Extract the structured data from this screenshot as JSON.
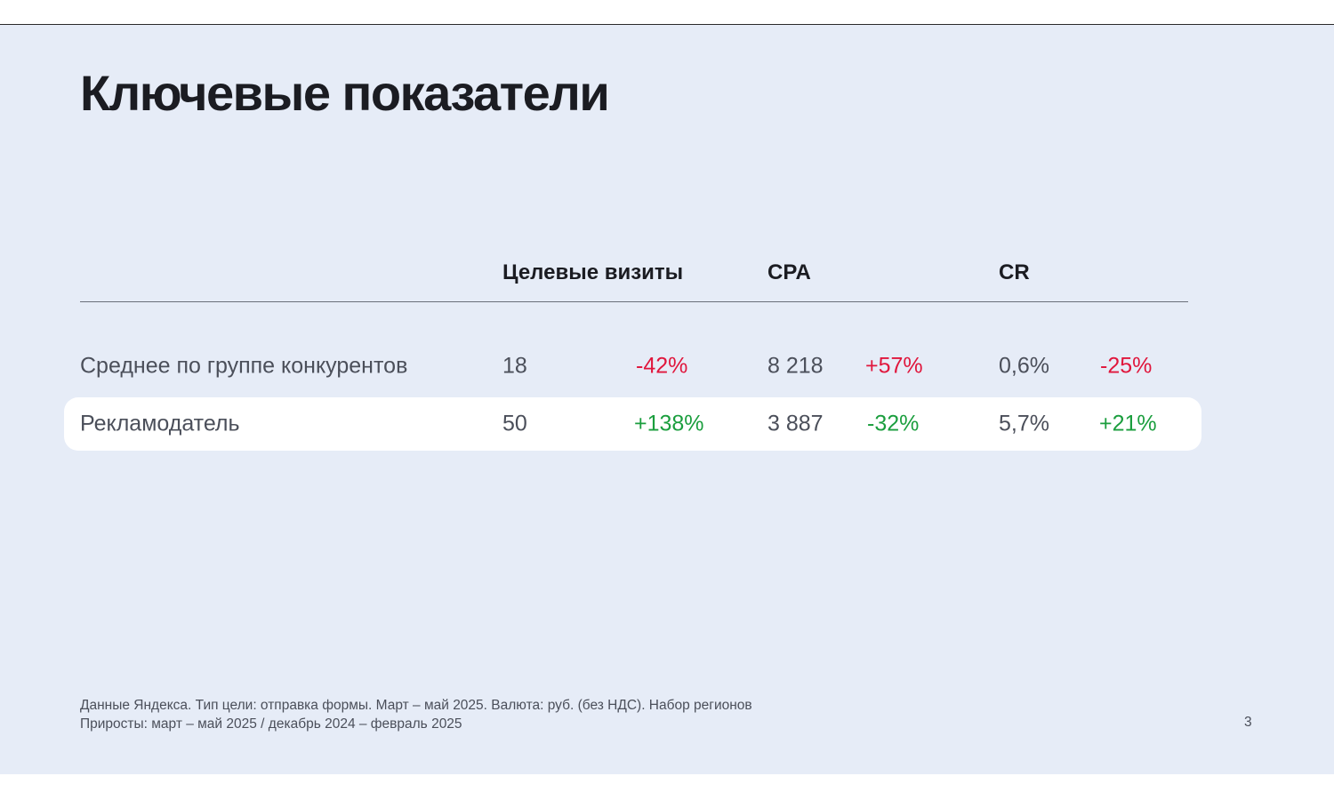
{
  "slide": {
    "title": "Ключевые показатели",
    "page_number": "3"
  },
  "table": {
    "headers": {
      "visits": "Целевые визиты",
      "cpa": "CPA",
      "cr": "CR"
    },
    "rows": [
      {
        "label": "Среднее по группе конкурентов",
        "visits": "18",
        "visits_change": "-42%",
        "cpa": "8 218",
        "cpa_change": "+57%",
        "cr": "0,6%",
        "cr_change": "-25%"
      },
      {
        "label": "Рекламодатель",
        "visits": "50",
        "visits_change": "+138%",
        "cpa": "3 887",
        "cpa_change": "-32%",
        "cr": "5,7%",
        "cr_change": "+21%"
      }
    ]
  },
  "footnote": {
    "line1": "Данные Яндекса. Тип цели: отправка формы. Март – май 2025. Валюта: руб. (без НДС). Набор регионов",
    "line2": "Приросты: март – май 2025 / декабрь 2024 – февраль 2025"
  },
  "colors": {
    "background": "#e6ecf7",
    "negative": "#e0163c",
    "positive": "#1b9e3e",
    "highlight_row": "#ffffff"
  }
}
